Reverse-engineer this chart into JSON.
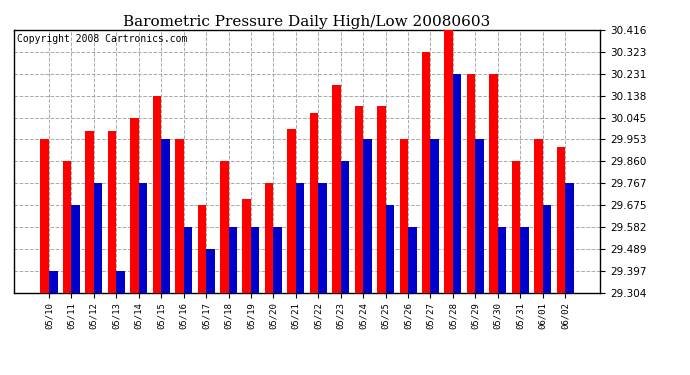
{
  "title": "Barometric Pressure Daily High/Low 20080603",
  "copyright": "Copyright 2008 Cartronics.com",
  "dates": [
    "05/10",
    "05/11",
    "05/12",
    "05/13",
    "05/14",
    "05/15",
    "05/16",
    "05/17",
    "05/18",
    "05/19",
    "05/20",
    "05/21",
    "05/22",
    "05/23",
    "05/24",
    "05/25",
    "05/26",
    "05/27",
    "05/28",
    "05/29",
    "05/30",
    "05/31",
    "06/01",
    "06/02"
  ],
  "highs": [
    29.953,
    29.86,
    29.99,
    29.99,
    30.045,
    30.138,
    29.953,
    29.675,
    29.86,
    29.7,
    29.767,
    29.997,
    30.065,
    30.185,
    30.093,
    30.093,
    29.953,
    30.323,
    30.416,
    30.231,
    30.231,
    29.86,
    29.953,
    29.92
  ],
  "lows": [
    29.397,
    29.675,
    29.767,
    29.397,
    29.767,
    29.953,
    29.582,
    29.489,
    29.582,
    29.582,
    29.582,
    29.767,
    29.767,
    29.86,
    29.953,
    29.675,
    29.582,
    29.953,
    30.231,
    29.953,
    29.582,
    29.582,
    29.675,
    29.767
  ],
  "bar_width": 0.38,
  "ylim_min": 29.304,
  "ylim_max": 30.416,
  "yticks": [
    29.304,
    29.397,
    29.489,
    29.582,
    29.675,
    29.767,
    29.86,
    29.953,
    30.045,
    30.138,
    30.231,
    30.323,
    30.416
  ],
  "high_color": "#ff0000",
  "low_color": "#0000cc",
  "grid_color": "#aaaaaa",
  "background_color": "#ffffff",
  "title_fontsize": 11,
  "copyright_fontsize": 7
}
